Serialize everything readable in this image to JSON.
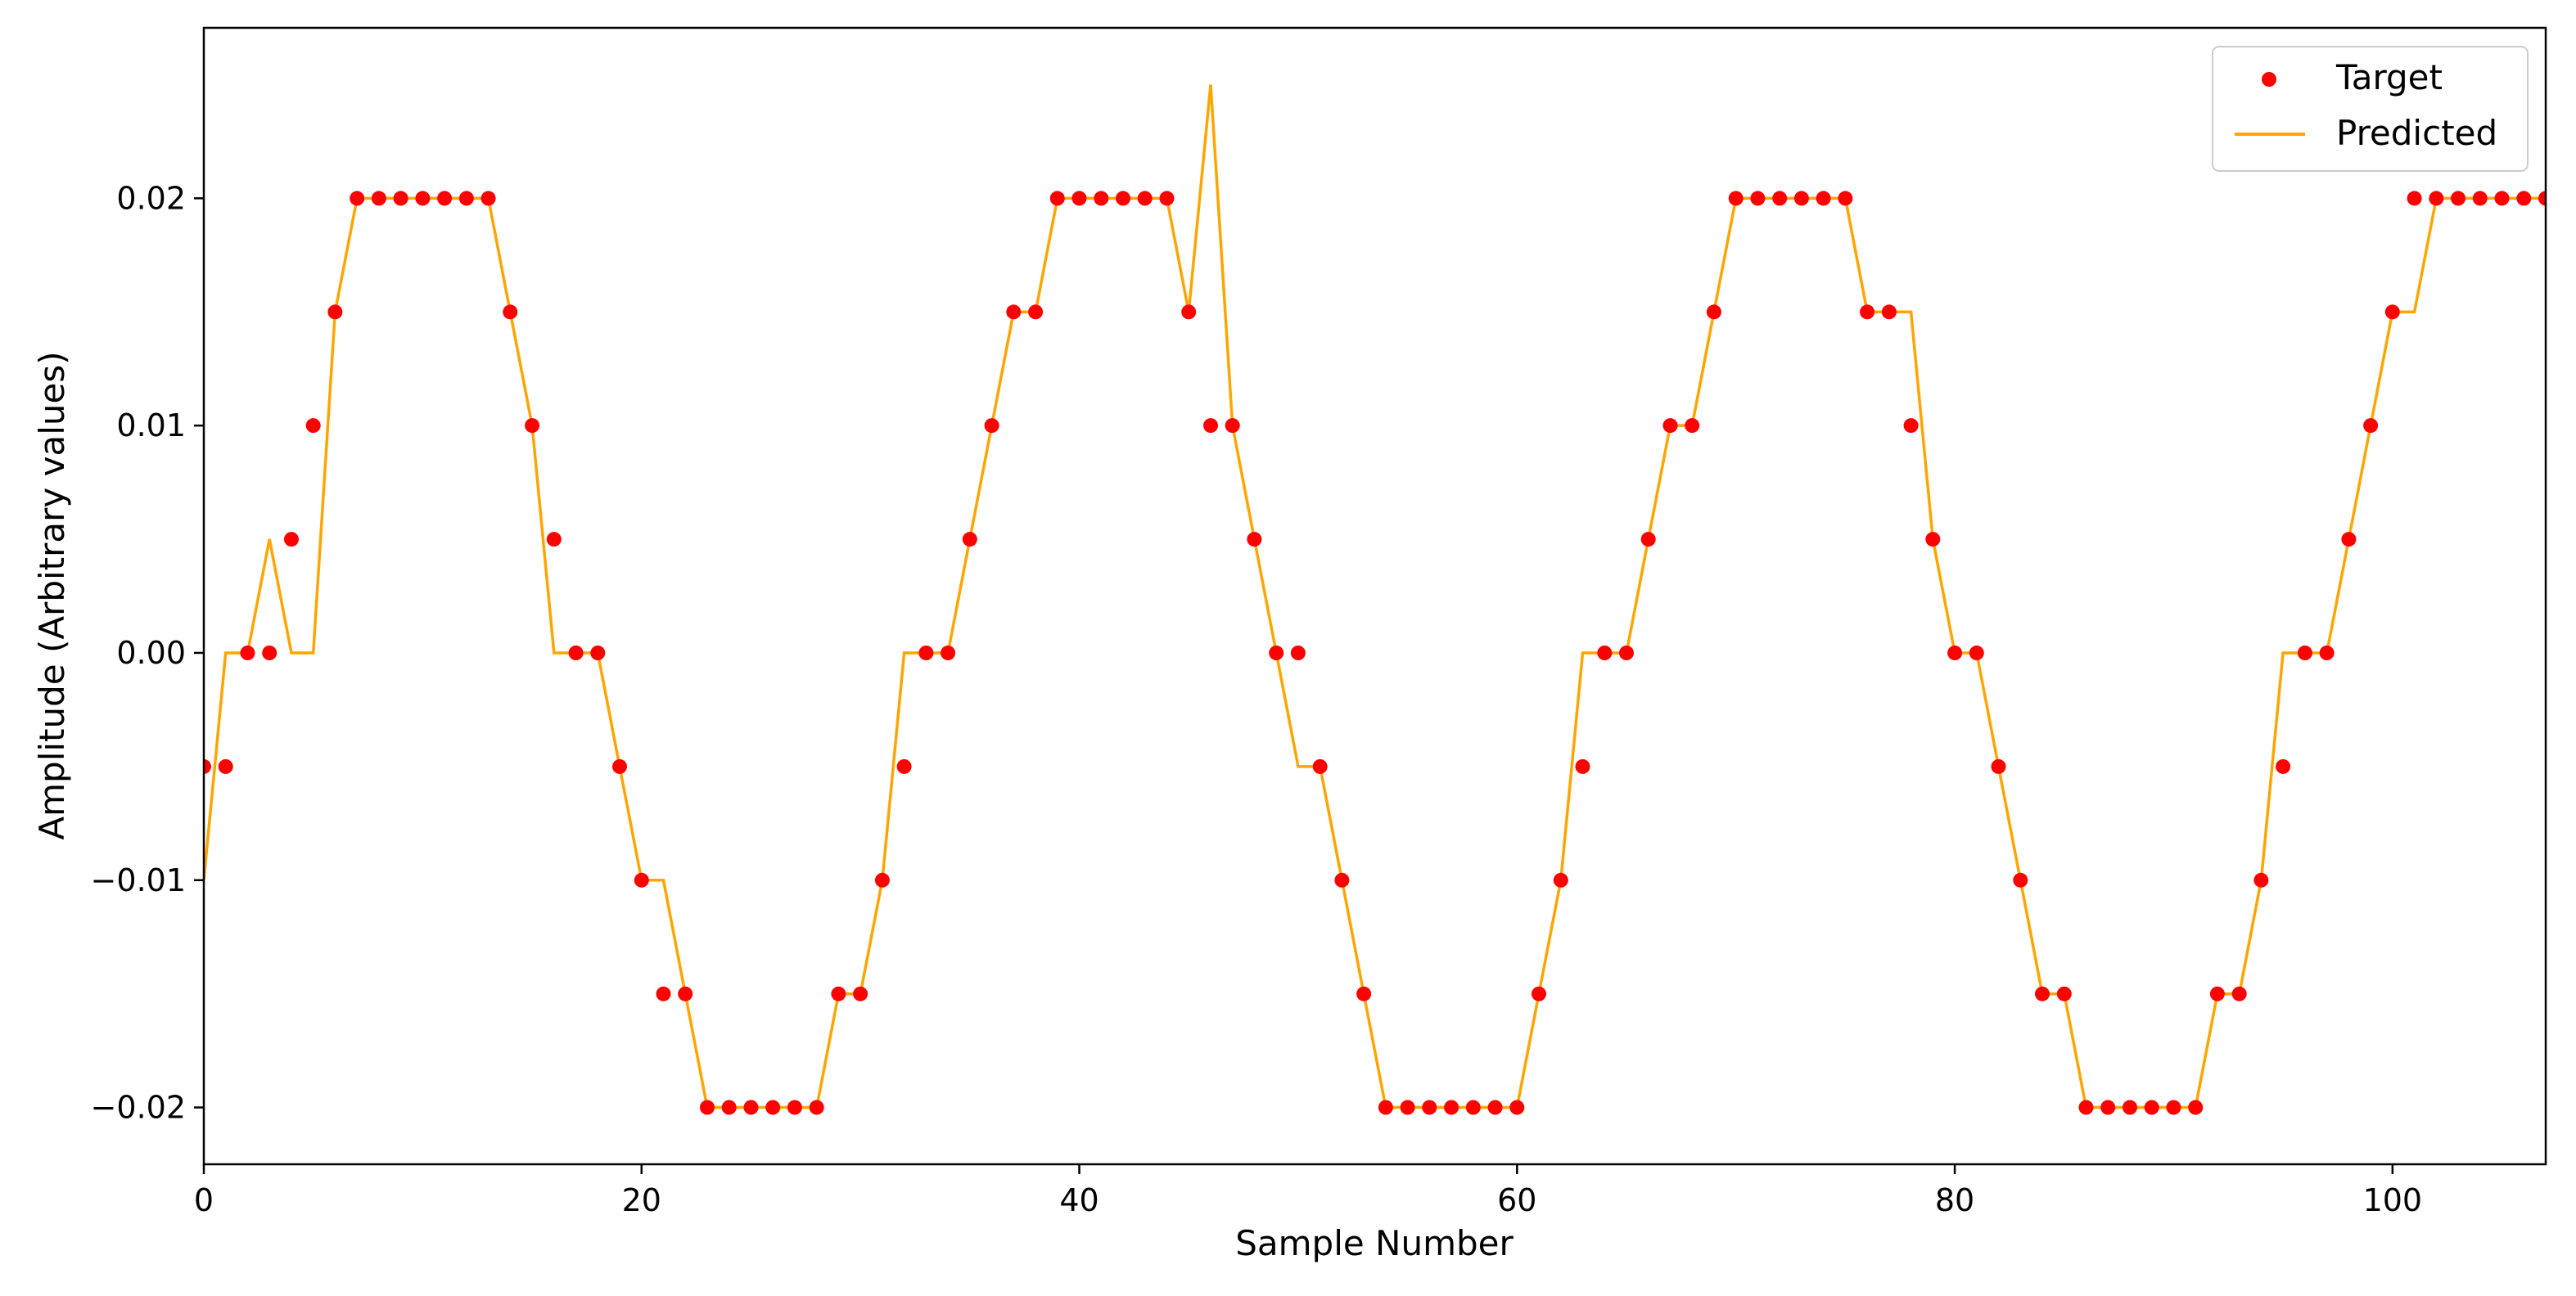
{
  "chart_data": {
    "type": "scatter",
    "xlabel": "Sample Number",
    "ylabel": "Amplitude (Arbitrary values)",
    "xlim": [
      0,
      107
    ],
    "ylim": [
      -0.0225,
      0.0275
    ],
    "xticks": [
      0,
      20,
      40,
      60,
      80,
      100
    ],
    "xtick_labels": [
      "0",
      "20",
      "40",
      "60",
      "80",
      "100"
    ],
    "yticks": [
      -0.02,
      -0.01,
      0.0,
      0.01,
      0.02
    ],
    "ytick_labels": [
      "−0.02",
      "−0.01",
      "0.00",
      "0.01",
      "0.02"
    ],
    "grid": false,
    "legend_position": "top-right",
    "series": [
      {
        "name": "Target",
        "kind": "scatter",
        "color": "#ff0000",
        "x": [
          0,
          1,
          2,
          3,
          4,
          5,
          6,
          7,
          8,
          9,
          10,
          11,
          12,
          13,
          14,
          15,
          16,
          17,
          18,
          19,
          20,
          21,
          22,
          23,
          24,
          25,
          26,
          27,
          28,
          29,
          30,
          31,
          32,
          33,
          34,
          35,
          36,
          37,
          38,
          39,
          40,
          41,
          42,
          43,
          44,
          45,
          46,
          47,
          48,
          49,
          50,
          51,
          52,
          53,
          54,
          55,
          56,
          57,
          58,
          59,
          60,
          61,
          62,
          63,
          64,
          65,
          66,
          67,
          68,
          69,
          70,
          71,
          72,
          73,
          74,
          75,
          76,
          77,
          78,
          79,
          80,
          81,
          82,
          83,
          84,
          85,
          86,
          87,
          88,
          89,
          90,
          91,
          92,
          93,
          94,
          95,
          96,
          97,
          98,
          99,
          100,
          101,
          102,
          103,
          104,
          105,
          106,
          107
        ],
        "y": [
          -0.005,
          -0.005,
          0,
          0,
          0.005,
          0.01,
          0.015,
          0.02,
          0.02,
          0.02,
          0.02,
          0.02,
          0.02,
          0.02,
          0.015,
          0.01,
          0.005,
          0,
          0,
          -0.005,
          -0.01,
          -0.015,
          -0.015,
          -0.02,
          -0.02,
          -0.02,
          -0.02,
          -0.02,
          -0.02,
          -0.015,
          -0.015,
          -0.01,
          -0.005,
          0,
          0,
          0.005,
          0.01,
          0.015,
          0.015,
          0.02,
          0.02,
          0.02,
          0.02,
          0.02,
          0.02,
          0.015,
          0.01,
          0.01,
          0.005,
          0,
          0,
          -0.005,
          -0.01,
          -0.015,
          -0.02,
          -0.02,
          -0.02,
          -0.02,
          -0.02,
          -0.02,
          -0.02,
          -0.015,
          -0.01,
          -0.005,
          0,
          0,
          0.005,
          0.01,
          0.01,
          0.015,
          0.02,
          0.02,
          0.02,
          0.02,
          0.02,
          0.02,
          0.015,
          0.015,
          0.01,
          0.005,
          0,
          0,
          -0.005,
          -0.01,
          -0.015,
          -0.015,
          -0.02,
          -0.02,
          -0.02,
          -0.02,
          -0.02,
          -0.02,
          -0.015,
          -0.015,
          -0.01,
          -0.005,
          0,
          0,
          0.005,
          0.01,
          0.015,
          0.02,
          0.02,
          0.02,
          0.02,
          0.02,
          0.02,
          0.02
        ]
      },
      {
        "name": "Predicted",
        "kind": "line",
        "color": "#ffa500",
        "x": [
          0,
          1,
          2,
          3,
          4,
          5,
          6,
          7,
          8,
          9,
          10,
          11,
          12,
          13,
          14,
          15,
          16,
          17,
          18,
          19,
          20,
          21,
          22,
          23,
          24,
          25,
          26,
          27,
          28,
          29,
          30,
          31,
          32,
          33,
          34,
          35,
          36,
          37,
          38,
          39,
          40,
          41,
          42,
          43,
          44,
          45,
          46,
          47,
          48,
          49,
          50,
          51,
          52,
          53,
          54,
          55,
          56,
          57,
          58,
          59,
          60,
          61,
          62,
          63,
          64,
          65,
          66,
          67,
          68,
          69,
          70,
          71,
          72,
          73,
          74,
          75,
          76,
          77,
          78,
          79,
          80,
          81,
          82,
          83,
          84,
          85,
          86,
          87,
          88,
          89,
          90,
          91,
          92,
          93,
          94,
          95,
          96,
          97,
          98,
          99,
          100,
          101,
          102,
          103,
          104,
          105,
          106,
          107
        ],
        "y": [
          -0.01,
          0,
          0,
          0.005,
          0,
          0,
          0.015,
          0.02,
          0.02,
          0.02,
          0.02,
          0.02,
          0.02,
          0.02,
          0.015,
          0.01,
          0,
          0,
          0,
          -0.005,
          -0.01,
          -0.01,
          -0.015,
          -0.02,
          -0.02,
          -0.02,
          -0.02,
          -0.02,
          -0.02,
          -0.015,
          -0.015,
          -0.01,
          0,
          0,
          0,
          0.005,
          0.01,
          0.015,
          0.015,
          0.02,
          0.02,
          0.02,
          0.02,
          0.02,
          0.02,
          0.015,
          0.025,
          0.01,
          0.005,
          0,
          -0.005,
          -0.005,
          -0.01,
          -0.015,
          -0.02,
          -0.02,
          -0.02,
          -0.02,
          -0.02,
          -0.02,
          -0.02,
          -0.015,
          -0.01,
          0,
          0,
          0,
          0.005,
          0.01,
          0.01,
          0.015,
          0.02,
          0.02,
          0.02,
          0.02,
          0.02,
          0.02,
          0.015,
          0.015,
          0.015,
          0.005,
          0,
          0,
          -0.005,
          -0.01,
          -0.015,
          -0.015,
          -0.02,
          -0.02,
          -0.02,
          -0.02,
          -0.02,
          -0.02,
          -0.015,
          -0.015,
          -0.01,
          0,
          0,
          0,
          0.005,
          0.01,
          0.015,
          0.015,
          0.02,
          0.02,
          0.02,
          0.02,
          0.02,
          0.02
        ]
      }
    ]
  }
}
